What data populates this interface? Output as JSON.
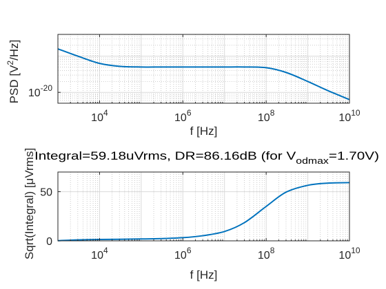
{
  "chart_data": [
    {
      "type": "line",
      "title": "",
      "xlabel": "f [Hz]",
      "ylabel_main": "PSD [V",
      "ylabel_sup": "2",
      "ylabel_tail": "/Hz]",
      "xscale": "log",
      "yscale": "log",
      "xlim": [
        1000,
        10000000000
      ],
      "ylim_log10": [
        -20.3,
        -18.4
      ],
      "x_ticks": [
        {
          "base": "10",
          "exp": "4"
        },
        {
          "base": "10",
          "exp": "6"
        },
        {
          "base": "10",
          "exp": "8"
        },
        {
          "base": "10",
          "exp": "10"
        }
      ],
      "y_ticks": [
        {
          "base": "10",
          "exp": "-20",
          "value_log10": -20
        }
      ],
      "grid": true,
      "line_color": "#0072bd",
      "x": [
        1000,
        3000,
        10000,
        30000,
        100000,
        300000,
        1000000,
        3000000,
        10000000,
        30000000,
        100000000,
        300000000,
        1000000000,
        3000000000,
        10000000000
      ],
      "y_log10": [
        -18.8,
        -19.0,
        -19.2,
        -19.28,
        -19.3,
        -19.3,
        -19.3,
        -19.3,
        -19.3,
        -19.3,
        -19.32,
        -19.45,
        -19.7,
        -19.95,
        -20.2
      ]
    },
    {
      "type": "line",
      "title_main": "Integral=59.18uVrms, DR=86.16dB (for V",
      "title_sub": "odmax",
      "title_tail": "=1.70V)",
      "xlabel": "f [Hz]",
      "ylabel": "Sqrt(Integral) [μVrms]",
      "xscale": "log",
      "xlim": [
        1000,
        10000000000
      ],
      "ylim": [
        0,
        70
      ],
      "x_ticks": [
        {
          "base": "10",
          "exp": "4"
        },
        {
          "base": "10",
          "exp": "6"
        },
        {
          "base": "10",
          "exp": "8"
        },
        {
          "base": "10",
          "exp": "10"
        }
      ],
      "y_ticks": [
        "0",
        "50"
      ],
      "y_tick_values": [
        0,
        50
      ],
      "grid": true,
      "line_color": "#0072bd",
      "x": [
        1000,
        3000,
        10000,
        30000,
        100000,
        300000,
        1000000,
        3000000,
        10000000,
        30000000,
        100000000,
        300000000,
        1000000000,
        3000000000,
        10000000000
      ],
      "y": [
        0.2,
        1.0,
        1.4,
        1.6,
        1.9,
        2.3,
        3.2,
        5.2,
        9.5,
        18.5,
        35.0,
        49.5,
        56.5,
        58.7,
        59.2
      ]
    }
  ]
}
